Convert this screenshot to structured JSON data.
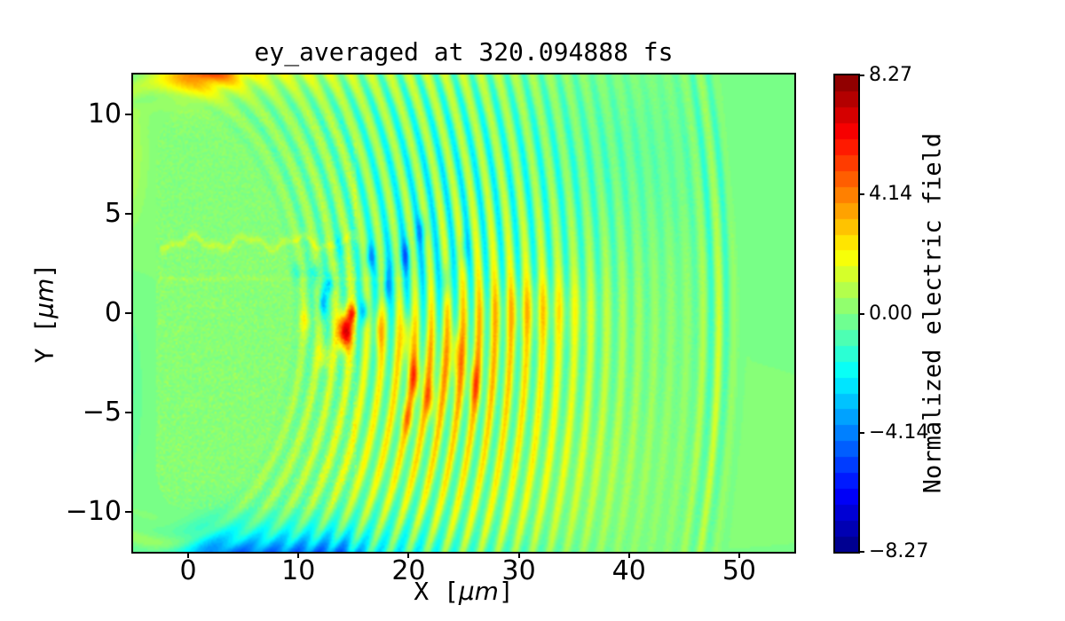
{
  "figure": {
    "background": "#ffffff"
  },
  "chart_data": {
    "type": "heatmap",
    "title": "ey_averaged at 320.094888 fs",
    "xlabel": "X [μm]",
    "xlabel_parts": [
      "X [",
      "μm",
      "]"
    ],
    "ylabel": "Y [μm]",
    "ylabel_parts": [
      "Y [",
      "μm",
      "]"
    ],
    "x_range": [
      -5,
      55
    ],
    "y_range": [
      -12,
      12
    ],
    "grid": false,
    "x_ticks": [
      {
        "value": 0,
        "label": "0"
      },
      {
        "value": 10,
        "label": "10"
      },
      {
        "value": 20,
        "label": "20"
      },
      {
        "value": 30,
        "label": "30"
      },
      {
        "value": 40,
        "label": "40"
      },
      {
        "value": 50,
        "label": "50"
      }
    ],
    "y_ticks": [
      {
        "value": 10,
        "label": "10"
      },
      {
        "value": 5,
        "label": "5"
      },
      {
        "value": 0,
        "label": "0"
      },
      {
        "value": -5,
        "label": "−5"
      },
      {
        "value": -10,
        "label": "−10"
      }
    ],
    "colorbar": {
      "label": "Normalized electric field",
      "colormap": "jet",
      "vmin": -8.27,
      "vmax": 8.27,
      "bands": 30,
      "ticks": [
        {
          "value": 8.27,
          "label": "8.27"
        },
        {
          "value": 4.14,
          "label": "4.14"
        },
        {
          "value": 0.0,
          "label": "0.00"
        },
        {
          "value": -4.14,
          "label": "−4.14"
        },
        {
          "value": -8.27,
          "label": "−8.27"
        }
      ]
    },
    "field_model": {
      "background_value": 0,
      "wake": {
        "center_x": -2,
        "center_y": 0,
        "y_scale": 1.08,
        "wavelength": 1.45,
        "phase_r0": 15,
        "r_min": 12.5,
        "r_max": 51.8,
        "amp": 2.3,
        "r_peak": 27,
        "r_sigma": 14,
        "front_amp": 1.2,
        "front_r": 50.3,
        "front_sigma": 2.0,
        "angular_damp": 0.4,
        "skew": 0.25
      },
      "blobs": [
        [
          14.2,
          -0.9,
          7.5,
          0.6,
          0.9
        ],
        [
          14.9,
          0.0,
          3.5,
          0.45,
          0.5
        ],
        [
          12.2,
          0.5,
          -3.6,
          0.35,
          0.8
        ],
        [
          16.0,
          0.1,
          -3.2,
          0.4,
          0.6
        ],
        [
          12.9,
          1.5,
          -2.6,
          0.4,
          0.5
        ],
        [
          11.6,
          2.0,
          -2.2,
          0.45,
          0.5
        ],
        [
          18.0,
          1.3,
          -2.8,
          0.35,
          0.9
        ],
        [
          16.5,
          2.8,
          -2.2,
          0.45,
          0.6
        ],
        [
          19.7,
          2.9,
          -2.0,
          0.45,
          0.7
        ],
        [
          21.2,
          4.2,
          -1.8,
          0.5,
          0.7
        ],
        [
          17.3,
          -0.8,
          2.8,
          0.4,
          1.1
        ],
        [
          19.8,
          -1.2,
          2.6,
          0.45,
          1.2
        ],
        [
          20.6,
          -3.3,
          2.8,
          0.5,
          1.0
        ],
        [
          22.0,
          -4.4,
          2.4,
          0.5,
          0.9
        ],
        [
          19.9,
          -5.3,
          1.8,
          0.6,
          0.8
        ],
        [
          10.6,
          -0.4,
          1.6,
          0.5,
          0.6
        ],
        [
          12.3,
          -2.2,
          1.7,
          0.6,
          0.6
        ],
        [
          9.9,
          2.0,
          -1.4,
          0.45,
          0.45
        ],
        [
          13.7,
          3.4,
          -1.6,
          0.5,
          0.5
        ],
        [
          23.4,
          1.6,
          -1.8,
          0.4,
          0.9
        ],
        [
          25.0,
          3.2,
          -1.5,
          0.45,
          0.8
        ],
        [
          24.3,
          -2.0,
          2.2,
          0.45,
          1.2
        ],
        [
          26.0,
          -3.6,
          2.0,
          0.5,
          1.1
        ],
        [
          1.5,
          12.5,
          2.6,
          3.2,
          1.1
        ]
      ],
      "biases": [
        [
          23.0,
          -2.8,
          1.0,
          4.5,
          2.2
        ],
        [
          19.5,
          2.4,
          -1.0,
          3.5,
          2.0
        ],
        [
          31.0,
          0.2,
          1.15,
          5.0,
          1.5
        ],
        [
          27.0,
          -2.0,
          0.7,
          8.0,
          4.0
        ],
        [
          19.0,
          -7.0,
          0.55,
          6.0,
          3.0
        ],
        [
          33.0,
          -8.0,
          0.5,
          8.0,
          3.5
        ],
        [
          38.0,
          7.5,
          -0.45,
          11.0,
          4.0
        ],
        [
          20.0,
          7.0,
          -0.35,
          5.0,
          2.5
        ]
      ],
      "top_band": {
        "y_center": 13.3,
        "y_sigma": 1.9,
        "components": [
          [
            1.0,
            4.5,
            5.0
          ],
          [
            10.0,
            6.0,
            2.0
          ],
          [
            24.0,
            9.0,
            0.8
          ]
        ]
      },
      "bottom_blob": {
        "x": 8,
        "half_width": 5,
        "x_sigma": 3,
        "y_center": -13.0,
        "y_sigma": 1.6,
        "amp": -4.6
      },
      "bottom_halo": {
        "x": 11,
        "half_width": 8,
        "x_sigma": 4,
        "y_center": -12.6,
        "y_sigma": 2.4,
        "amp": -1.3
      },
      "bottom_strip": {
        "x": 26,
        "half_width": 0,
        "x_sigma": 10,
        "y_center": -12.9,
        "y_sigma": 1.5,
        "amp": -0.9
      },
      "left_strip_top": {
        "x": -5.6,
        "x_sigma": 1.8,
        "y": 8,
        "y_sigma": 3.5,
        "amp": 0.9
      },
      "left_strip_bottom": {
        "x": -5.8,
        "x_sigma": 1.6,
        "y": -4,
        "y_sigma": 4.0,
        "amp": -0.7
      },
      "block": {
        "x0": -2.9,
        "x1": 15.3,
        "y0": -9.9,
        "y1": 10.2,
        "corner_radius": 2.3,
        "tint": 0.1,
        "noise_amp": 0.5,
        "yellow_speckle_below_y": 3.8
      },
      "wavy_line": {
        "y": 3.55,
        "x0": -2.6,
        "x1": 15.4,
        "amp": 0.9,
        "sigma": 0.2
      },
      "horizontal_line": {
        "y": 1.72,
        "x0": -2.6,
        "x1": 20.0,
        "amp": 0.42,
        "sigma": 0.13
      }
    }
  }
}
